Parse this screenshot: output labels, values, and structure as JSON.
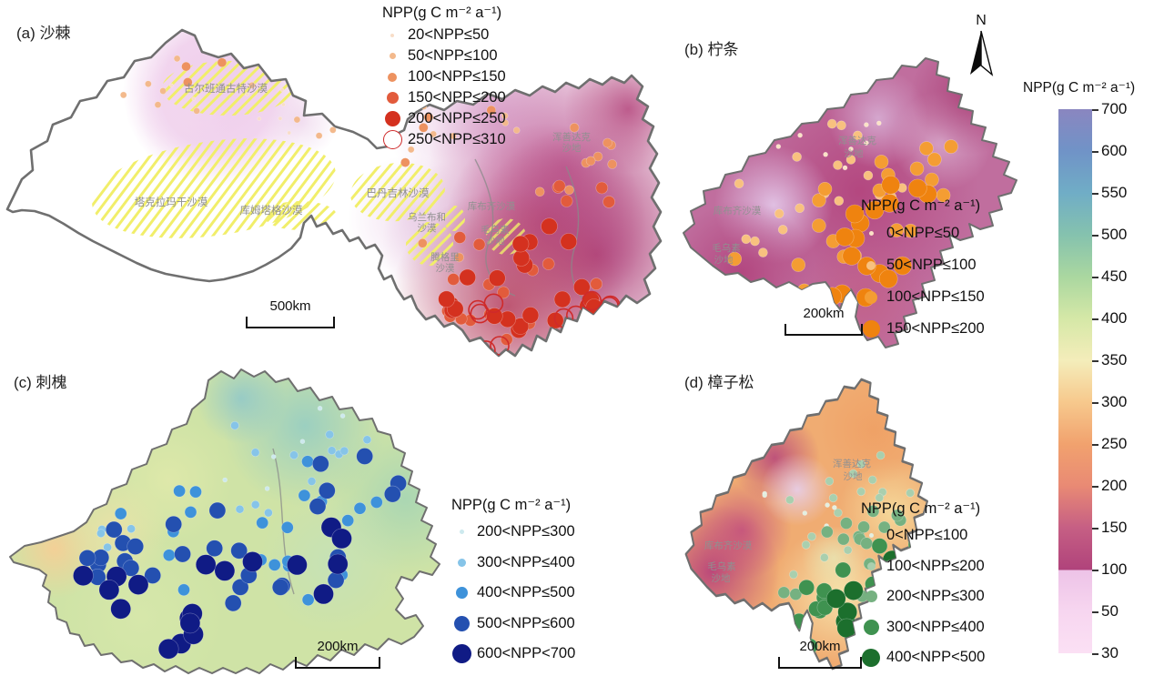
{
  "panels": [
    {
      "id": "a",
      "title": "(a) 沙棘",
      "legend_title": "NPP(g C m⁻² a⁻¹)",
      "legend_items": [
        {
          "label": "20<NPP≤50",
          "color": "#f8ddc8",
          "size": 4,
          "r": 2,
          "open": false,
          "clusters": [
            [
              240,
              75,
              95,
              40,
              7
            ],
            [
              320,
              105,
              40,
              25,
              3
            ]
          ]
        },
        {
          "label": "50<NPP≤100",
          "color": "#f3b98c",
          "size": 7,
          "r": 3.5,
          "open": false,
          "clusters": [
            [
              235,
              80,
              100,
              45,
              9
            ],
            [
              330,
              115,
              45,
              30,
              4
            ],
            [
              560,
              130,
              120,
              50,
              6
            ],
            [
              480,
              90,
              40,
              20,
              2
            ]
          ]
        },
        {
          "label": "100<NPP≤150",
          "color": "#ed9260",
          "size": 10,
          "r": 5,
          "open": false,
          "clusters": [
            [
              560,
              140,
              120,
              55,
              8
            ],
            [
              640,
              135,
              55,
              35,
              5
            ],
            [
              250,
              70,
              70,
              30,
              3
            ],
            [
              500,
              230,
              40,
              30,
              2
            ]
          ]
        },
        {
          "label": "150<NPP≤200",
          "color": "#e25b3c",
          "size": 13,
          "r": 6.5,
          "open": false,
          "clusters": [
            [
              560,
              280,
              100,
              60,
              12
            ],
            [
              640,
              200,
              50,
              40,
              5
            ],
            [
              520,
              330,
              60,
              30,
              4
            ]
          ]
        },
        {
          "label": "200<NPP≤250",
          "color": "#d4311f",
          "size": 17,
          "r": 9,
          "open": false,
          "clusters": [
            [
              570,
              310,
              90,
              50,
              14
            ],
            [
              620,
              260,
              60,
              40,
              6
            ],
            [
              500,
              300,
              40,
              30,
              3
            ]
          ]
        },
        {
          "label": "250<NPP≤310",
          "color": "#cf2a2a",
          "size": 19,
          "r": 10,
          "open": true,
          "clusters": [
            [
              575,
              335,
              85,
              30,
              9
            ],
            [
              645,
              310,
              40,
              25,
              3
            ]
          ]
        }
      ],
      "scale_label": "500km",
      "map_labels": [
        "古尔班通古特沙漠",
        "塔克拉玛干沙漠",
        "库姆塔格沙漠",
        "巴丹吉林沙漠",
        "乌兰布和",
        "沙漠",
        "库布齐沙漠",
        "毛乌素",
        "沙地",
        "腾格里",
        "沙漠",
        "浑善达克",
        "沙地"
      ]
    },
    {
      "id": "b",
      "title": "(b) 柠条",
      "legend_title": "NPP(g C m⁻² a⁻¹)",
      "legend_items": [
        {
          "label": "0<NPP≤50",
          "color": "#fbe2c6",
          "size": 5,
          "r": 2.5,
          "open": false,
          "clusters": [
            [
              150,
              110,
              55,
              35,
              5
            ],
            [
              235,
              85,
              40,
              28,
              3
            ]
          ]
        },
        {
          "label": "50<NPP≤100",
          "color": "#f8c17f",
          "size": 10,
          "r": 5,
          "open": false,
          "clusters": [
            [
              140,
              155,
              75,
              45,
              8
            ],
            [
              245,
              120,
              55,
              40,
              5
            ],
            [
              70,
              235,
              50,
              38,
              5
            ],
            [
              190,
              80,
              40,
              24,
              3
            ]
          ]
        },
        {
          "label": "100<NPP≤150",
          "color": "#f49d33",
          "size": 14,
          "r": 7.5,
          "open": false,
          "clusters": [
            [
              205,
              185,
              65,
              45,
              9
            ],
            [
              265,
              140,
              45,
              35,
              5
            ],
            [
              110,
              245,
              55,
              35,
              5
            ],
            [
              292,
              108,
              28,
              24,
              3
            ]
          ]
        },
        {
          "label": "150<NPP≤200",
          "color": "#ef830f",
          "size": 19,
          "r": 10,
          "open": false,
          "clusters": [
            [
              220,
              205,
              55,
              40,
              7
            ],
            [
              258,
              165,
              40,
              30,
              4
            ],
            [
              230,
              255,
              40,
              35,
              4
            ],
            [
              165,
              255,
              35,
              25,
              2
            ]
          ]
        }
      ],
      "scale_label": "200km",
      "map_labels": [
        "库布齐沙漠",
        "毛乌素",
        "沙地",
        "浑善达克",
        "沙地"
      ]
    },
    {
      "id": "c",
      "title": "(c) 刺槐",
      "legend_title": "NPP(g C m⁻² a⁻¹)",
      "legend_items": [
        {
          "label": "200<NPP≤300",
          "color": "#cde9ee",
          "size": 5,
          "r": 2.5,
          "open": false,
          "clusters": [
            [
              330,
              80,
              60,
              40,
              4
            ],
            [
              260,
              140,
              40,
              30,
              2
            ]
          ]
        },
        {
          "label": "300<NPP≤400",
          "color": "#86c4e8",
          "size": 9,
          "r": 4.5,
          "open": false,
          "clusters": [
            [
              285,
              115,
              95,
              55,
              9
            ],
            [
              150,
              200,
              60,
              40,
              4
            ],
            [
              395,
              95,
              40,
              30,
              3
            ]
          ]
        },
        {
          "label": "400<NPP≤500",
          "color": "#3e92da",
          "size": 13,
          "r": 6.5,
          "open": false,
          "clusters": [
            [
              260,
              200,
              150,
              85,
              16
            ],
            [
              380,
              130,
              55,
              45,
              5
            ]
          ]
        },
        {
          "label": "500<NPP≤600",
          "color": "#2450b0",
          "size": 17,
          "r": 9,
          "open": false,
          "clusters": [
            [
              250,
              235,
              150,
              75,
              18
            ],
            [
              385,
              135,
              55,
              45,
              6
            ],
            [
              120,
              215,
              50,
              35,
              4
            ]
          ]
        },
        {
          "label": "600<NPP<700",
          "color": "#101b85",
          "size": 21,
          "r": 11,
          "open": false,
          "clusters": [
            [
              225,
              265,
              130,
              55,
              12
            ],
            [
              340,
              200,
              65,
              40,
              4
            ],
            [
              120,
              245,
              45,
              28,
              3
            ]
          ]
        }
      ],
      "scale_label": "200km",
      "map_labels": []
    },
    {
      "id": "d",
      "title": "(d) 樟子松",
      "legend_title": "NPP(g C m⁻² a⁻¹)",
      "legend_items": [
        {
          "label": "0<NPP≤100",
          "color": "#e3efe1",
          "size": 5,
          "r": 2.5,
          "open": false,
          "clusters": [
            [
              167,
              140,
              36,
              35,
              4
            ],
            [
              116,
              120,
              22,
              20,
              2
            ]
          ]
        },
        {
          "label": "100<NPP≤200",
          "color": "#a9cfae",
          "size": 9,
          "r": 4.5,
          "open": false,
          "clusters": [
            [
              181,
              150,
              58,
              50,
              9
            ],
            [
              232,
              110,
              33,
              35,
              4
            ],
            [
              145,
              190,
              36,
              35,
              4
            ]
          ]
        },
        {
          "label": "200<NPP≤300",
          "color": "#76b181",
          "size": 13,
          "r": 6.5,
          "open": false,
          "clusters": [
            [
              174,
              205,
              58,
              50,
              9
            ],
            [
              232,
              160,
              33,
              35,
              5
            ],
            [
              109,
              240,
              29,
              30,
              3
            ]
          ]
        },
        {
          "label": "300<NPP≤400",
          "color": "#3f9250",
          "size": 17,
          "r": 8.5,
          "open": false,
          "clusters": [
            [
              189,
              245,
              51,
              45,
              8
            ],
            [
              247,
              185,
              25,
              30,
              3
            ],
            [
              152,
              280,
              29,
              28,
              3
            ]
          ]
        },
        {
          "label": "400<NPP<500",
          "color": "#1c6f2d",
          "size": 20,
          "r": 10.5,
          "open": false,
          "clusters": [
            [
              203,
              270,
              40,
              35,
              6
            ],
            [
              225,
              215,
              25,
              25,
              3
            ]
          ]
        }
      ],
      "scale_label": "200km",
      "map_labels": [
        "浑善达克",
        "沙地",
        "库布齐沙漠",
        "毛乌素",
        "沙地"
      ]
    }
  ],
  "colorbar": {
    "title": "NPP(g C m⁻² a⁻¹)",
    "ticks": [
      "700",
      "600",
      "550",
      "500",
      "450",
      "400",
      "350",
      "300",
      "250",
      "200",
      "150",
      "100",
      "50",
      "30"
    ],
    "gradient": [
      [
        "#8a86c0",
        0
      ],
      [
        "#7093c7",
        7.7
      ],
      [
        "#70adc6",
        15.4
      ],
      [
        "#85c2ae",
        23.1
      ],
      [
        "#aad7a0",
        30.8
      ],
      [
        "#d5e8a7",
        38.5
      ],
      [
        "#f4edba",
        46.2
      ],
      [
        "#f7c98d",
        53.8
      ],
      [
        "#f1a26e",
        61.5
      ],
      [
        "#e98a74",
        69.2
      ],
      [
        "#c65f84",
        76.9
      ],
      [
        "#b0437b",
        84.6
      ],
      [
        "#edc3e7",
        84.8
      ],
      [
        "#f7d6f0",
        92.3
      ],
      [
        "#fbe0f4",
        100
      ]
    ]
  },
  "compass": {
    "label": "N"
  },
  "boundary_color": "#6f6f6f",
  "hatch_color": "#f1ee6a"
}
